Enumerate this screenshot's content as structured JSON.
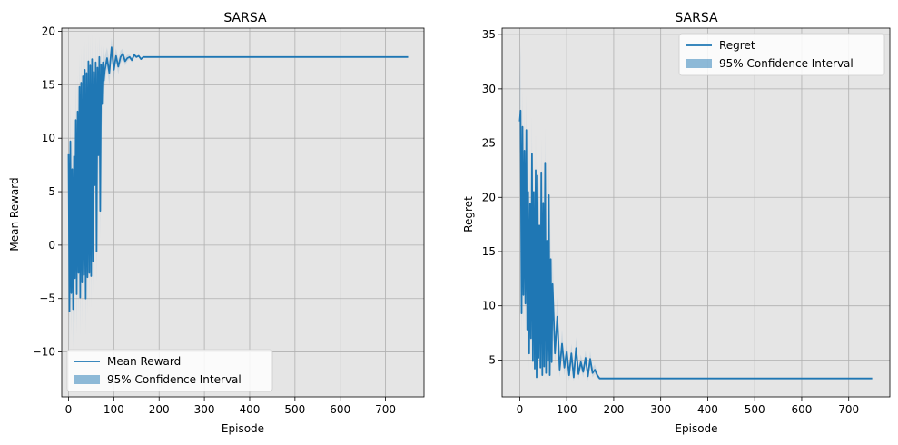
{
  "colors": {
    "line": "#1f77b4",
    "band": "#1f77b4",
    "plot_bg": "#e5e5e5",
    "grid": "#b0b0b0"
  },
  "chart_data": [
    {
      "type": "line",
      "title": "SARSA",
      "xlabel": "Episode",
      "ylabel": "Mean Reward",
      "xlim": [
        -15,
        785
      ],
      "ylim": [
        -14.2,
        20.3
      ],
      "xticks": [
        0,
        100,
        200,
        300,
        400,
        500,
        600,
        700
      ],
      "yticks": [
        -10,
        -5,
        0,
        5,
        10,
        15,
        20
      ],
      "grid": true,
      "legend_position": "lower-left",
      "legend": [
        "Mean Reward",
        " 95% Confidence Interval"
      ],
      "series": [
        {
          "name": "Mean Reward",
          "x": [
            0,
            2,
            4,
            6,
            8,
            10,
            12,
            14,
            16,
            18,
            20,
            22,
            24,
            26,
            28,
            30,
            32,
            34,
            36,
            38,
            40,
            42,
            44,
            46,
            48,
            50,
            52,
            54,
            56,
            58,
            60,
            62,
            64,
            66,
            68,
            70,
            72,
            74,
            76,
            78,
            80,
            85,
            90,
            95,
            100,
            105,
            110,
            115,
            120,
            125,
            130,
            135,
            140,
            145,
            150,
            155,
            160,
            165,
            170,
            750
          ],
          "y": [
            8.5,
            -6.2,
            9.7,
            -4.5,
            7.1,
            -6.0,
            8.3,
            -3.1,
            11.7,
            -4.6,
            12.5,
            -2.6,
            14.8,
            -4.9,
            15.2,
            -3.5,
            15.8,
            -2.8,
            16.4,
            -5.0,
            16.1,
            -3.0,
            17.2,
            -2.6,
            16.8,
            -2.9,
            17.4,
            -1.5,
            16.2,
            5.6,
            17.1,
            -0.6,
            16.6,
            8.4,
            17.6,
            3.2,
            16.9,
            13.2,
            17.1,
            15.4,
            16.3,
            17.5,
            16.1,
            18.5,
            16.4,
            17.7,
            16.7,
            17.6,
            17.9,
            17.2,
            17.5,
            17.6,
            17.3,
            17.8,
            17.6,
            17.7,
            17.4,
            17.6,
            17.6,
            17.6
          ],
          "ci_low": [
            4.5,
            -10.5,
            5.5,
            -8.5,
            3.5,
            -10.0,
            4.5,
            -7.5,
            7.5,
            -8.5,
            8.5,
            -6.5,
            11.0,
            -8.5,
            11.5,
            -7.5,
            12.5,
            -6.5,
            13.0,
            -8.5,
            13.0,
            -6.5,
            14.0,
            -6.0,
            14.0,
            -6.0,
            14.5,
            -4.5,
            13.5,
            2.5,
            14.5,
            -3.5,
            14.0,
            5.5,
            15.5,
            0.5,
            15.0,
            11.0,
            15.5,
            14.0,
            15.0,
            16.5,
            15.0,
            17.5,
            15.5,
            17.0,
            16.0,
            17.0,
            17.4,
            16.8,
            17.2,
            17.4,
            17.1,
            17.6,
            17.5,
            17.6,
            17.3,
            17.5,
            17.6,
            17.6
          ],
          "ci_high": [
            12.5,
            -2.0,
            13.5,
            -0.5,
            10.5,
            -2.0,
            12.0,
            1.5,
            15.5,
            -0.5,
            16.0,
            1.5,
            18.0,
            -1.0,
            18.5,
            0.5,
            18.8,
            1.0,
            19.2,
            -1.5,
            19.0,
            0.5,
            19.8,
            1.0,
            19.5,
            0.0,
            19.8,
            1.5,
            18.8,
            8.5,
            19.5,
            2.5,
            19.0,
            11.0,
            19.6,
            6.0,
            18.8,
            15.2,
            18.6,
            16.8,
            17.6,
            18.5,
            17.2,
            19.4,
            17.3,
            18.4,
            17.4,
            18.2,
            18.4,
            17.6,
            17.8,
            17.8,
            17.5,
            18.0,
            17.7,
            17.8,
            17.5,
            17.7,
            17.6,
            17.6
          ]
        }
      ]
    },
    {
      "type": "line",
      "title": "SARSA",
      "xlabel": "Episode",
      "ylabel": "Regret",
      "xlim": [
        -37.5,
        787.5
      ],
      "ylim": [
        1.6,
        35.6
      ],
      "xticks": [
        0,
        100,
        200,
        300,
        400,
        500,
        600,
        700
      ],
      "yticks": [
        5,
        10,
        15,
        20,
        25,
        30,
        35
      ],
      "grid": true,
      "legend_position": "upper-right",
      "legend": [
        "Regret",
        " 95% Confidence Interval"
      ],
      "series": [
        {
          "name": "Regret",
          "x": [
            0,
            2,
            4,
            6,
            8,
            10,
            12,
            14,
            16,
            18,
            20,
            22,
            24,
            26,
            28,
            30,
            32,
            34,
            36,
            38,
            40,
            42,
            44,
            46,
            48,
            50,
            52,
            54,
            56,
            58,
            60,
            62,
            64,
            66,
            68,
            70,
            75,
            80,
            85,
            90,
            95,
            100,
            105,
            110,
            115,
            120,
            125,
            130,
            135,
            140,
            145,
            150,
            155,
            160,
            165,
            170,
            750
          ],
          "y": [
            27.0,
            28.0,
            9.3,
            26.5,
            11.0,
            24.3,
            10.2,
            26.2,
            7.8,
            20.5,
            5.6,
            19.4,
            7.0,
            24.0,
            4.9,
            20.5,
            4.2,
            22.5,
            3.4,
            22.0,
            5.2,
            17.4,
            4.3,
            22.3,
            3.6,
            19.5,
            4.4,
            23.2,
            3.8,
            16.0,
            4.9,
            20.2,
            3.6,
            14.3,
            4.8,
            12.0,
            5.6,
            9.0,
            4.1,
            6.5,
            4.3,
            5.8,
            3.6,
            5.6,
            3.4,
            6.1,
            3.7,
            4.8,
            3.9,
            5.2,
            3.5,
            5.1,
            3.8,
            4.1,
            3.6,
            3.3,
            3.3
          ],
          "ci_low": [
            24.0,
            25.0,
            6.5,
            23.5,
            8.0,
            21.0,
            7.5,
            23.0,
            5.5,
            17.5,
            4.0,
            16.5,
            5.0,
            21.0,
            3.5,
            17.5,
            3.2,
            19.5,
            2.8,
            19.0,
            4.0,
            14.5,
            3.3,
            19.5,
            2.9,
            16.5,
            3.4,
            20.5,
            3.0,
            13.0,
            3.8,
            17.5,
            2.9,
            11.5,
            3.8,
            9.5,
            4.5,
            7.5,
            3.4,
            5.3,
            3.6,
            5.0,
            3.1,
            4.8,
            3.0,
            5.2,
            3.2,
            4.2,
            3.4,
            4.6,
            3.1,
            4.5,
            3.4,
            3.7,
            3.3,
            3.2,
            3.3
          ],
          "ci_high": [
            31.0,
            34.0,
            12.5,
            30.0,
            14.5,
            28.0,
            13.5,
            29.5,
            10.5,
            24.0,
            7.5,
            22.5,
            9.5,
            27.5,
            6.5,
            24.0,
            5.5,
            26.0,
            4.5,
            25.5,
            6.8,
            20.5,
            5.6,
            25.5,
            4.6,
            23.0,
            5.6,
            26.5,
            4.9,
            19.5,
            6.2,
            23.5,
            4.5,
            17.5,
            6.0,
            14.8,
            6.9,
            10.8,
            5.0,
            7.8,
            5.2,
            6.8,
            4.2,
            6.5,
            3.9,
            7.1,
            4.3,
            5.5,
            4.5,
            5.9,
            4.0,
            5.8,
            4.3,
            4.6,
            3.9,
            3.4,
            3.3
          ]
        }
      ]
    }
  ]
}
